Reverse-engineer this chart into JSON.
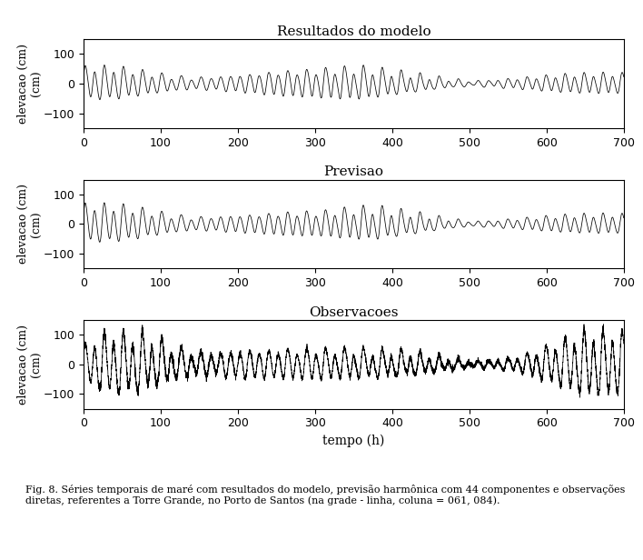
{
  "title1": "Resultados do modelo",
  "title2": "Previsao",
  "title3": "Observacoes",
  "xlabel": "tempo (h)",
  "ylabel": "elevacao (cm)",
  "yunits": "(cm)",
  "xlim": [
    0,
    700
  ],
  "ylim": [
    -150,
    150
  ],
  "yticks": [
    -100,
    0,
    100
  ],
  "xticks": [
    0,
    100,
    200,
    300,
    400,
    500,
    600,
    700
  ],
  "line_color": "#000000",
  "line_width": 0.55,
  "background_color": "#ffffff",
  "caption": "Fig. 8. Séries temporais de maré com resultados do modelo, previsão harmônica com 44 componentes e observações\ndiretas, referentes a Torre Grande, no Porto de Santos (na grade - linha, coluna = 061, 084).",
  "caption_fontsize": 8,
  "title_fontsize": 11,
  "tick_fontsize": 9,
  "ylabel_fontsize": 9,
  "xlabel_fontsize": 10,
  "seed": 42,
  "n_points": 7001,
  "t_max": 700
}
